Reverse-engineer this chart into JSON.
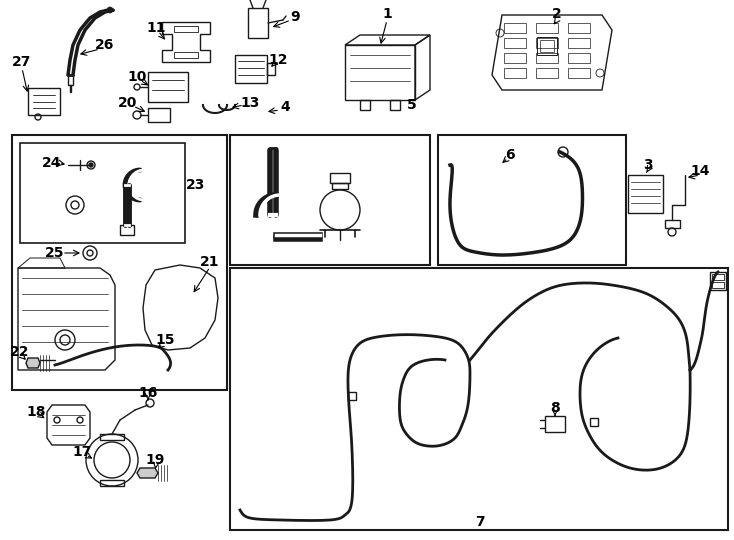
{
  "bg_color": "#ffffff",
  "line_color": "#1a1a1a",
  "fig_width": 7.34,
  "fig_height": 5.4,
  "dpi": 100
}
